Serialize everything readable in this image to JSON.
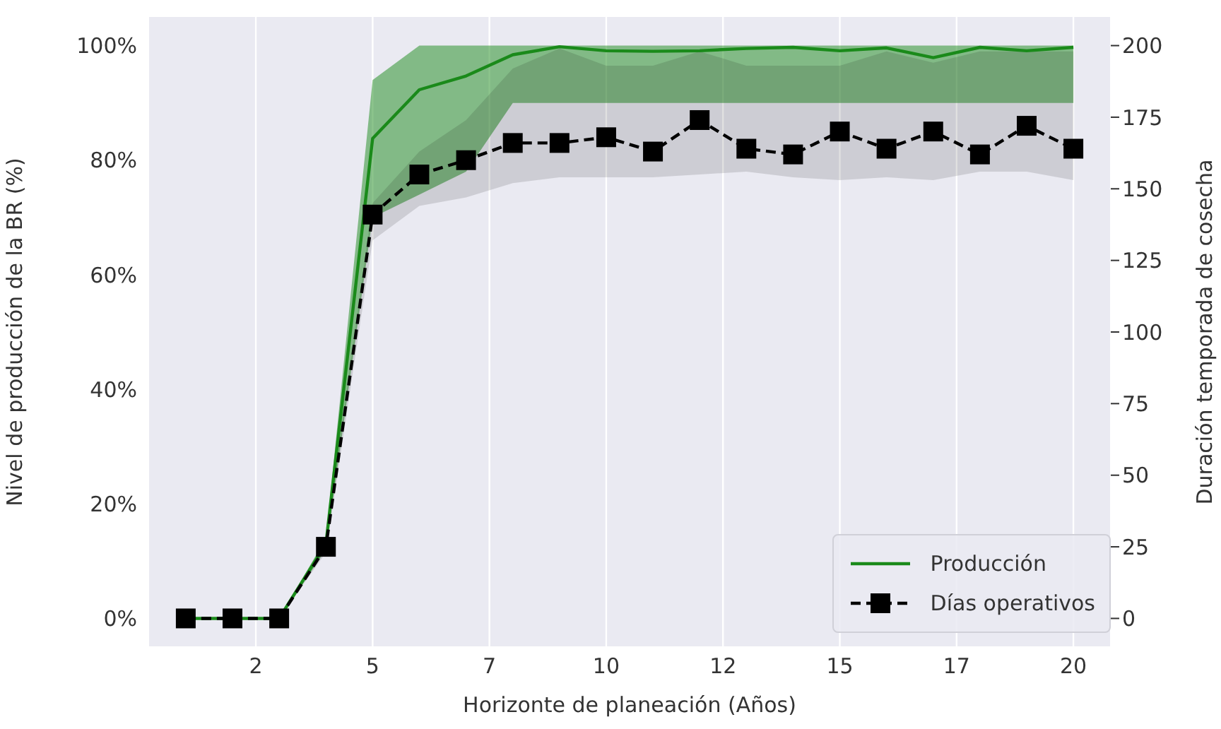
{
  "chart_data": {
    "type": "line",
    "xlabel": "Horizonte de planeación (Años)",
    "ylabel": "Nivel de producción de la BR (%)",
    "y2label": "Duración temporada de cosecha",
    "x": [
      1,
      2,
      3,
      4,
      5,
      6,
      7,
      8,
      9,
      10,
      11,
      12,
      13,
      14,
      15,
      16,
      17,
      18,
      19,
      20
    ],
    "series": [
      {
        "name": "Producción",
        "color": "#1a8a1a",
        "marker": "none",
        "line_style": "solid",
        "values": [
          0,
          0,
          0,
          13,
          83.8,
          92.3,
          94.7,
          98.4,
          99.8,
          99.1,
          99.0,
          99.1,
          99.5,
          99.7,
          99.1,
          99.6,
          97.9,
          99.7,
          99.1,
          99.7
        ],
        "lower": [
          0,
          0,
          0,
          12,
          70,
          74,
          78,
          90,
          90,
          90,
          90,
          90,
          90,
          90,
          90,
          90,
          90,
          90,
          90,
          90
        ],
        "upper": [
          0,
          0,
          0,
          14,
          94,
          100,
          100,
          100,
          100,
          100,
          100,
          100,
          100,
          100,
          100,
          100,
          100,
          100,
          100,
          100
        ]
      },
      {
        "name": "Días operativos",
        "color": "#000000",
        "axis": "y2",
        "marker": "square",
        "line_style": "dashed",
        "values": [
          0,
          0,
          0,
          25,
          141,
          155,
          160,
          166,
          166,
          168,
          163,
          174,
          164,
          162,
          170,
          164,
          170,
          162,
          172,
          164
        ],
        "lower": [
          0,
          0,
          0,
          23,
          132,
          144,
          147,
          152,
          154,
          154,
          154,
          155,
          156,
          154,
          153,
          154,
          153,
          156,
          156,
          153
        ],
        "upper": [
          0,
          0,
          0,
          27,
          145,
          163,
          174,
          192,
          199,
          193,
          193,
          198,
          193,
          193,
          193,
          198,
          194,
          198,
          198,
          198
        ]
      }
    ],
    "xlim": [
      0.2,
      20.8
    ],
    "xticks": [
      {
        "value": 2.5,
        "label": "2"
      },
      5,
      {
        "value": 7.5,
        "label": "7"
      },
      10,
      {
        "value": 12.5,
        "label": "12"
      },
      15,
      {
        "value": 17.5,
        "label": "17"
      },
      20
    ],
    "ylim": [
      -5,
      105
    ],
    "yticks": [
      {
        "value": 0,
        "label": "0%"
      },
      {
        "value": 20,
        "label": "20%"
      },
      {
        "value": 40,
        "label": "40%"
      },
      {
        "value": 60,
        "label": "60%"
      },
      {
        "value": 80,
        "label": "80%"
      },
      {
        "value": 100,
        "label": "100%"
      }
    ],
    "y2lim": [
      -10,
      210
    ],
    "y2ticks": [
      0,
      25,
      50,
      75,
      100,
      125,
      150,
      175,
      200
    ],
    "grid": true,
    "legend": "bottom right"
  }
}
